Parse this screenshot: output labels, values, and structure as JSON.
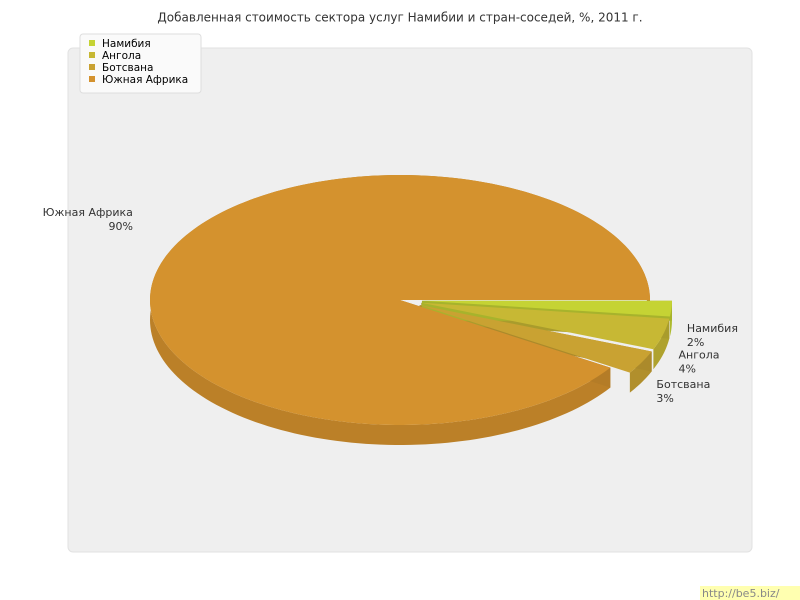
{
  "chart_data": {
    "type": "pie",
    "title": "Добавленная стоимость сектора услуг Намибии и стран-соседей, %, 2011 г.",
    "categories": [
      "Намибия",
      "Ангола",
      "Ботсвана",
      "Южная Африка"
    ],
    "values": [
      2,
      4,
      3,
      90
    ],
    "value_labels": [
      "2%",
      "4%",
      "3%",
      "90%"
    ],
    "colors": [
      "#c5d334",
      "#c7b834",
      "#c9a232",
      "#d4922e"
    ],
    "legend": "top-left"
  },
  "watermark": "http://be5.biz/"
}
